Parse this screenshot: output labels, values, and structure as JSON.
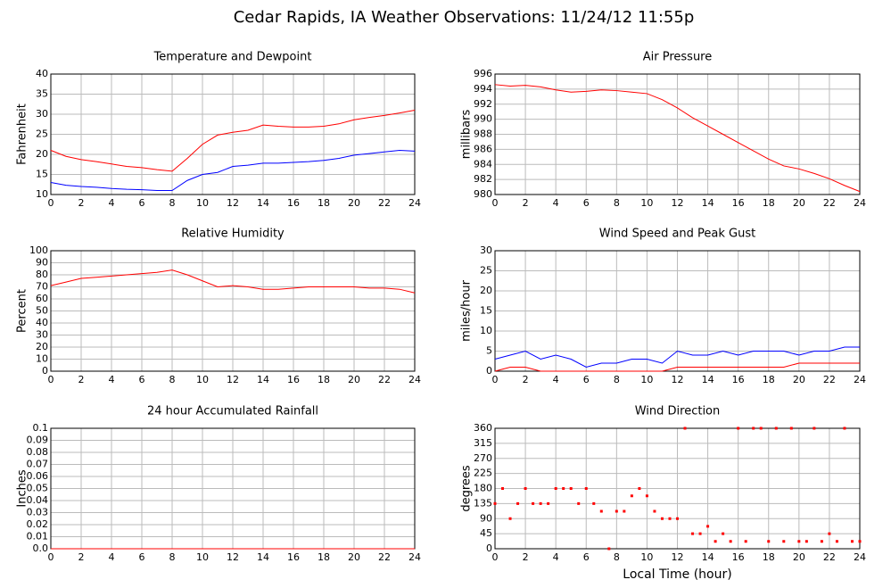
{
  "title": "Cedar Rapids, IA Weather Observations: 11/24/12 11:55p",
  "chart_data": [
    {
      "type": "line",
      "title": "Temperature and Dewpoint",
      "ylabel": "Fahrenheit",
      "x": [
        0,
        1,
        2,
        3,
        4,
        5,
        6,
        7,
        8,
        9,
        10,
        11,
        12,
        13,
        14,
        15,
        16,
        17,
        18,
        19,
        20,
        21,
        22,
        23,
        24
      ],
      "series": [
        {
          "color": "#ff0000",
          "values": [
            21,
            19.5,
            18.7,
            18.2,
            17.6,
            17,
            16.7,
            16.2,
            15.8,
            19,
            22.5,
            24.8,
            25.5,
            26,
            27.3,
            27,
            26.8,
            26.8,
            27,
            27.6,
            28.6,
            29.2,
            29.7,
            30.3,
            31
          ]
        },
        {
          "color": "#0000ff",
          "values": [
            13,
            12.3,
            12,
            11.8,
            11.5,
            11.3,
            11.2,
            11,
            11,
            13.5,
            15,
            15.5,
            17,
            17.3,
            17.8,
            17.8,
            18,
            18.2,
            18.5,
            19,
            19.8,
            20.2,
            20.6,
            21,
            20.8
          ]
        }
      ],
      "xlim": [
        0,
        24
      ],
      "xticks": [
        0,
        2,
        4,
        6,
        8,
        10,
        12,
        14,
        16,
        18,
        20,
        22,
        24
      ],
      "ylim": [
        10,
        40
      ],
      "yticks": [
        10,
        15,
        20,
        25,
        30,
        35,
        40
      ],
      "grid": true
    },
    {
      "type": "line",
      "title": "Air Pressure",
      "ylabel": "millibars",
      "x": [
        0,
        1,
        2,
        3,
        4,
        5,
        6,
        7,
        8,
        9,
        10,
        11,
        12,
        13,
        14,
        15,
        16,
        17,
        18,
        19,
        20,
        21,
        22,
        23,
        24
      ],
      "series": [
        {
          "color": "#ff0000",
          "values": [
            994.6,
            994.4,
            994.5,
            994.3,
            993.9,
            993.6,
            993.7,
            993.9,
            993.8,
            993.6,
            993.4,
            992.6,
            991.5,
            990.2,
            989.1,
            988,
            986.9,
            985.8,
            984.7,
            983.8,
            983.4,
            982.8,
            982.1,
            981.2,
            980.4
          ]
        }
      ],
      "xlim": [
        0,
        24
      ],
      "xticks": [
        0,
        2,
        4,
        6,
        8,
        10,
        12,
        14,
        16,
        18,
        20,
        22,
        24
      ],
      "ylim": [
        980,
        996
      ],
      "yticks": [
        980,
        982,
        984,
        986,
        988,
        990,
        992,
        994,
        996
      ],
      "grid": true
    },
    {
      "type": "line",
      "title": "Relative Humidity",
      "ylabel": "Percent",
      "x": [
        0,
        1,
        2,
        3,
        4,
        5,
        6,
        7,
        8,
        9,
        10,
        11,
        12,
        13,
        14,
        15,
        16,
        17,
        18,
        19,
        20,
        21,
        22,
        23,
        24
      ],
      "series": [
        {
          "color": "#ff0000",
          "values": [
            71,
            74,
            77,
            78,
            79,
            80,
            81,
            82,
            84,
            80,
            75,
            70,
            71,
            70,
            68,
            68,
            69,
            70,
            70,
            70,
            70,
            69,
            69,
            68,
            65
          ]
        }
      ],
      "xlim": [
        0,
        24
      ],
      "xticks": [
        0,
        2,
        4,
        6,
        8,
        10,
        12,
        14,
        16,
        18,
        20,
        22,
        24
      ],
      "ylim": [
        0,
        100
      ],
      "yticks": [
        0,
        10,
        20,
        30,
        40,
        50,
        60,
        70,
        80,
        90,
        100
      ],
      "grid": true
    },
    {
      "type": "line",
      "title": "Wind Speed and Peak Gust",
      "ylabel": "miles/hour",
      "x": [
        0,
        1,
        2,
        3,
        4,
        5,
        6,
        7,
        8,
        9,
        10,
        11,
        12,
        13,
        14,
        15,
        16,
        17,
        18,
        19,
        20,
        21,
        22,
        23,
        24
      ],
      "series": [
        {
          "color": "#0000ff",
          "values": [
            3,
            4,
            5,
            3,
            4,
            3,
            1,
            2,
            2,
            3,
            3,
            2,
            5,
            4,
            4,
            5,
            4,
            5,
            5,
            5,
            4,
            5,
            5,
            6,
            6
          ]
        },
        {
          "color": "#ff0000",
          "values": [
            0,
            1,
            1,
            0,
            0,
            0,
            0,
            0,
            0,
            0,
            0,
            0,
            1,
            1,
            1,
            1,
            1,
            1,
            1,
            1,
            2,
            2,
            2,
            2,
            2
          ]
        }
      ],
      "xlim": [
        0,
        24
      ],
      "xticks": [
        0,
        2,
        4,
        6,
        8,
        10,
        12,
        14,
        16,
        18,
        20,
        22,
        24
      ],
      "ylim": [
        0,
        30
      ],
      "yticks": [
        0,
        5,
        10,
        15,
        20,
        25,
        30
      ],
      "grid": true
    },
    {
      "type": "line",
      "title": "24 hour Accumulated Rainfall",
      "ylabel": "Inches",
      "x": [
        0,
        24
      ],
      "series": [
        {
          "color": "#ff0000",
          "values": [
            0,
            0
          ]
        }
      ],
      "xlim": [
        0,
        24
      ],
      "xticks": [
        0,
        2,
        4,
        6,
        8,
        10,
        12,
        14,
        16,
        18,
        20,
        22,
        24
      ],
      "ylim": [
        0,
        0.1
      ],
      "yticks": [
        {
          "value": 0,
          "label": "0.0"
        },
        0.01,
        0.02,
        0.03,
        0.04,
        0.05,
        0.06,
        0.07,
        0.08,
        0.09,
        0.1
      ],
      "grid": true
    },
    {
      "type": "scatter",
      "title": "Wind Direction",
      "ylabel": "degrees",
      "xlabel": "Local Time (hour)",
      "x": [
        0,
        0.5,
        1,
        1.5,
        2,
        2.5,
        3,
        3.5,
        4,
        4.5,
        5,
        5.5,
        6,
        6.5,
        7,
        7.5,
        8,
        8.5,
        9,
        9.5,
        10,
        10.5,
        11,
        11.5,
        12,
        12.5,
        13,
        13.5,
        14,
        14.5,
        15,
        15.5,
        16,
        16.5,
        17,
        17.5,
        18,
        18.5,
        19,
        19.5,
        20,
        20.5,
        21,
        21.5,
        22,
        22.5,
        23,
        23.5,
        24
      ],
      "series": [
        {
          "color": "#ff0000",
          "values": [
            135,
            180,
            90,
            135,
            180,
            135,
            135,
            135,
            180,
            180,
            180,
            135,
            180,
            135,
            112,
            0,
            112,
            112,
            158,
            180,
            158,
            112,
            90,
            90,
            90,
            360,
            45,
            45,
            67,
            22,
            45,
            22,
            360,
            22,
            360,
            360,
            22,
            360,
            22,
            360,
            22,
            22,
            360,
            22,
            45,
            22,
            360,
            22,
            22
          ]
        }
      ],
      "xlim": [
        0,
        24
      ],
      "xticks": [
        0,
        2,
        4,
        6,
        8,
        10,
        12,
        14,
        16,
        18,
        20,
        22,
        24
      ],
      "ylim": [
        0,
        360
      ],
      "yticks": [
        0,
        45,
        90,
        135,
        180,
        225,
        270,
        315,
        360
      ],
      "grid": true
    }
  ]
}
